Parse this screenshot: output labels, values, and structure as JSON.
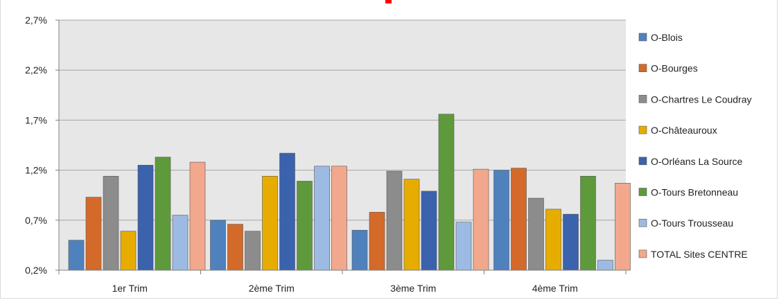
{
  "colors": {
    "plot_background": "#e7e7e7",
    "gridline": "#a6a6a6",
    "title_accent": "#ff0000"
  },
  "chart_data": {
    "type": "bar",
    "title": "",
    "xlabel": "",
    "ylabel": "",
    "ylim": [
      0.2,
      2.7
    ],
    "yticks": [
      "0,2%",
      "0,7%",
      "1,2%",
      "1,7%",
      "2,2%",
      "2,7%"
    ],
    "ytick_values": [
      0.2,
      0.7,
      1.2,
      1.7,
      2.2,
      2.7
    ],
    "grid": true,
    "legend_position": "right",
    "categories": [
      "1er Trim",
      "2ème Trim",
      "3ème Trim",
      "4ème Trim"
    ],
    "series": [
      {
        "name": "O-Blois",
        "color": "#4f81bd",
        "values": [
          0.5,
          0.7,
          0.6,
          1.2
        ]
      },
      {
        "name": "O-Bourges",
        "color": "#d46a2a",
        "values": [
          0.93,
          0.66,
          0.78,
          1.22
        ]
      },
      {
        "name": "O-Chartres Le Coudray",
        "color": "#8c8c8c",
        "values": [
          1.14,
          0.59,
          1.19,
          0.92
        ]
      },
      {
        "name": "O-Châteauroux",
        "color": "#e6ac00",
        "values": [
          0.59,
          1.14,
          1.11,
          0.81
        ]
      },
      {
        "name": "O-Orléans La Source",
        "color": "#3a62ad",
        "values": [
          1.25,
          1.37,
          0.99,
          0.76
        ]
      },
      {
        "name": "O-Tours Bretonneau",
        "color": "#5e9a3c",
        "values": [
          1.33,
          1.09,
          1.76,
          1.14
        ]
      },
      {
        "name": "O-Tours Trousseau",
        "color": "#9dbbe2",
        "values": [
          0.75,
          1.24,
          0.68,
          0.3
        ]
      },
      {
        "name": "TOTAL Sites CENTRE",
        "color": "#f2a88c",
        "values": [
          1.28,
          1.24,
          1.21,
          1.07
        ]
      }
    ]
  }
}
